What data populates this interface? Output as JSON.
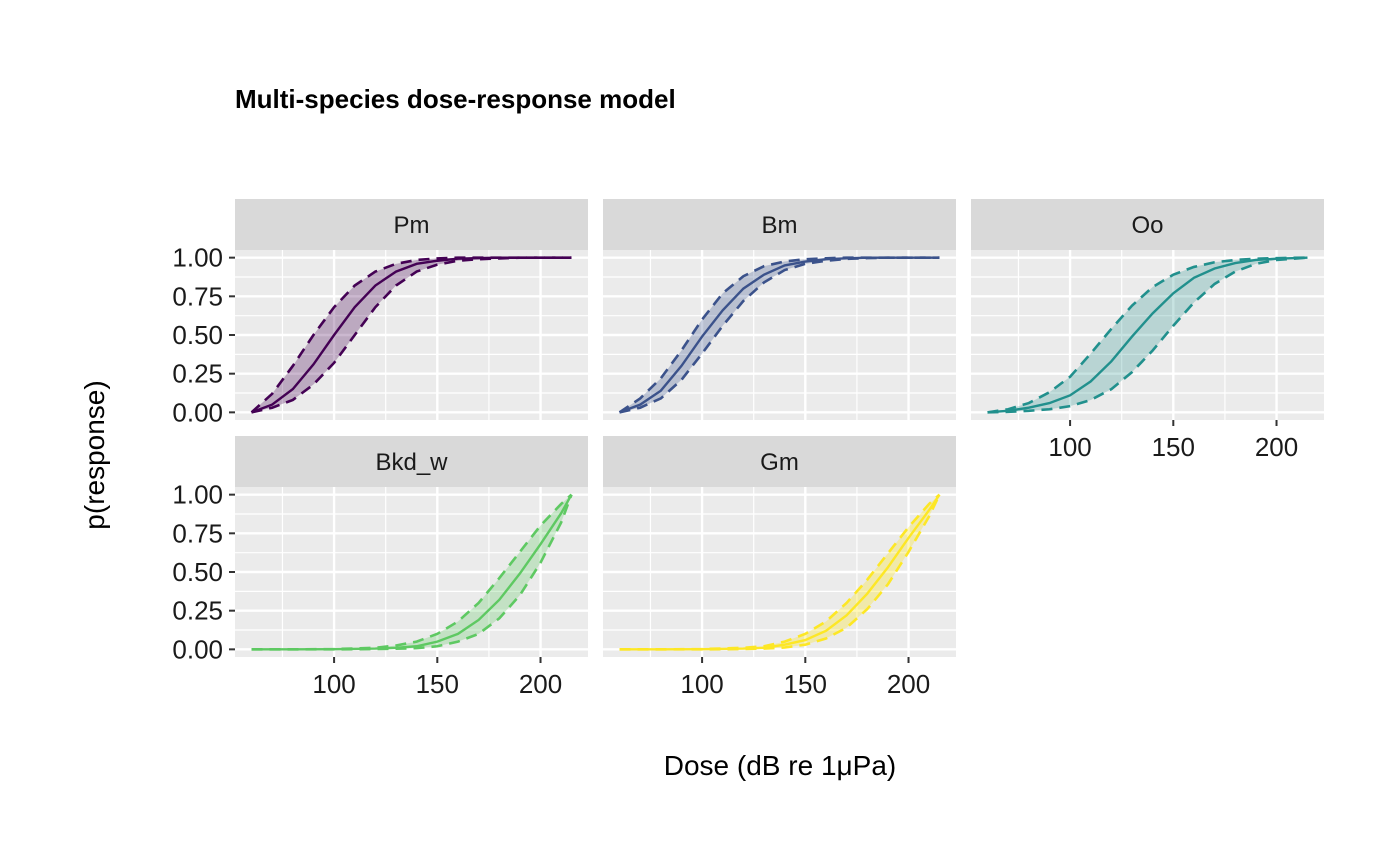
{
  "chart_data": {
    "type": "area",
    "title": "Multi-species dose-response model",
    "xlabel": "Dose (dB re 1μPa)",
    "ylabel": "p(response)",
    "xlim": [
      52,
      223
    ],
    "ylim": [
      0,
      1
    ],
    "x_ticks": [
      100,
      150,
      200
    ],
    "x_tick_labels": [
      "100",
      "150",
      "200"
    ],
    "y_ticks": [
      0,
      0.25,
      0.5,
      0.75,
      1
    ],
    "y_tick_labels": [
      "0.00",
      "0.25",
      "0.50",
      "0.75",
      "1.00"
    ],
    "x_range": [
      60,
      215
    ],
    "grid": true,
    "legend": "none",
    "facets": [
      {
        "name": "Pm",
        "color": "#440154",
        "fill": "#440154",
        "fill_opacity": 0.28,
        "curve": [
          [
            60,
            0
          ],
          [
            70,
            0.05
          ],
          [
            80,
            0.15
          ],
          [
            90,
            0.31
          ],
          [
            100,
            0.5
          ],
          [
            110,
            0.68
          ],
          [
            120,
            0.82
          ],
          [
            130,
            0.91
          ],
          [
            140,
            0.96
          ],
          [
            150,
            0.98
          ],
          [
            160,
            0.993
          ],
          [
            170,
            0.997
          ],
          [
            180,
            1
          ],
          [
            190,
            1
          ],
          [
            200,
            1
          ],
          [
            215,
            1
          ]
        ],
        "upper": [
          [
            60,
            0
          ],
          [
            70,
            0.12
          ],
          [
            80,
            0.3
          ],
          [
            90,
            0.5
          ],
          [
            100,
            0.68
          ],
          [
            110,
            0.82
          ],
          [
            120,
            0.91
          ],
          [
            130,
            0.96
          ],
          [
            140,
            0.985
          ],
          [
            150,
            0.995
          ],
          [
            160,
            1
          ],
          [
            170,
            1
          ],
          [
            180,
            1
          ],
          [
            190,
            1
          ],
          [
            200,
            1
          ],
          [
            215,
            1
          ]
        ],
        "lower": [
          [
            60,
            0
          ],
          [
            70,
            0.03
          ],
          [
            80,
            0.08
          ],
          [
            90,
            0.18
          ],
          [
            100,
            0.32
          ],
          [
            110,
            0.5
          ],
          [
            120,
            0.68
          ],
          [
            130,
            0.82
          ],
          [
            140,
            0.91
          ],
          [
            150,
            0.955
          ],
          [
            160,
            0.98
          ],
          [
            170,
            0.99
          ],
          [
            180,
            0.995
          ],
          [
            190,
            1
          ],
          [
            200,
            1
          ],
          [
            215,
            1
          ]
        ]
      },
      {
        "name": "Bm",
        "color": "#3b528b",
        "fill": "#3b528b",
        "fill_opacity": 0.28,
        "curve": [
          [
            60,
            0
          ],
          [
            70,
            0.05
          ],
          [
            80,
            0.14
          ],
          [
            90,
            0.3
          ],
          [
            100,
            0.49
          ],
          [
            110,
            0.66
          ],
          [
            120,
            0.8
          ],
          [
            130,
            0.89
          ],
          [
            140,
            0.95
          ],
          [
            150,
            0.975
          ],
          [
            160,
            0.99
          ],
          [
            170,
            0.996
          ],
          [
            180,
            1
          ],
          [
            190,
            1
          ],
          [
            200,
            1
          ],
          [
            215,
            1
          ]
        ],
        "upper": [
          [
            60,
            0
          ],
          [
            70,
            0.09
          ],
          [
            80,
            0.22
          ],
          [
            90,
            0.4
          ],
          [
            100,
            0.6
          ],
          [
            110,
            0.77
          ],
          [
            120,
            0.88
          ],
          [
            130,
            0.945
          ],
          [
            140,
            0.975
          ],
          [
            150,
            0.99
          ],
          [
            160,
            0.996
          ],
          [
            170,
            1
          ],
          [
            180,
            1
          ],
          [
            190,
            1
          ],
          [
            200,
            1
          ],
          [
            215,
            1
          ]
        ],
        "lower": [
          [
            60,
            0
          ],
          [
            70,
            0.03
          ],
          [
            80,
            0.09
          ],
          [
            90,
            0.21
          ],
          [
            100,
            0.38
          ],
          [
            110,
            0.56
          ],
          [
            120,
            0.72
          ],
          [
            130,
            0.84
          ],
          [
            140,
            0.92
          ],
          [
            150,
            0.96
          ],
          [
            160,
            0.98
          ],
          [
            170,
            0.992
          ],
          [
            180,
            0.997
          ],
          [
            190,
            1
          ],
          [
            200,
            1
          ],
          [
            215,
            1
          ]
        ]
      },
      {
        "name": "Oo",
        "color": "#21908d",
        "fill": "#21908d",
        "fill_opacity": 0.25,
        "curve": [
          [
            60,
            0
          ],
          [
            70,
            0.01
          ],
          [
            80,
            0.03
          ],
          [
            90,
            0.06
          ],
          [
            100,
            0.11
          ],
          [
            110,
            0.2
          ],
          [
            120,
            0.33
          ],
          [
            130,
            0.49
          ],
          [
            140,
            0.64
          ],
          [
            150,
            0.77
          ],
          [
            160,
            0.87
          ],
          [
            170,
            0.93
          ],
          [
            180,
            0.965
          ],
          [
            190,
            0.985
          ],
          [
            200,
            0.993
          ],
          [
            215,
            1
          ]
        ],
        "upper": [
          [
            60,
            0
          ],
          [
            70,
            0.02
          ],
          [
            80,
            0.06
          ],
          [
            90,
            0.13
          ],
          [
            100,
            0.23
          ],
          [
            110,
            0.38
          ],
          [
            120,
            0.54
          ],
          [
            130,
            0.69
          ],
          [
            140,
            0.81
          ],
          [
            150,
            0.89
          ],
          [
            160,
            0.94
          ],
          [
            170,
            0.97
          ],
          [
            180,
            0.985
          ],
          [
            190,
            0.993
          ],
          [
            200,
            0.997
          ],
          [
            215,
            1
          ]
        ],
        "lower": [
          [
            60,
            0
          ],
          [
            70,
            0.003
          ],
          [
            80,
            0.01
          ],
          [
            90,
            0.02
          ],
          [
            100,
            0.04
          ],
          [
            110,
            0.08
          ],
          [
            120,
            0.15
          ],
          [
            130,
            0.26
          ],
          [
            140,
            0.4
          ],
          [
            150,
            0.56
          ],
          [
            160,
            0.71
          ],
          [
            170,
            0.83
          ],
          [
            180,
            0.91
          ],
          [
            190,
            0.96
          ],
          [
            200,
            0.985
          ],
          [
            215,
            1
          ]
        ]
      },
      {
        "name": "Bkd_w",
        "color": "#5ec962",
        "fill": "#5ec962",
        "fill_opacity": 0.28,
        "curve": [
          [
            60,
            0
          ],
          [
            80,
            0
          ],
          [
            100,
            0.001
          ],
          [
            120,
            0.005
          ],
          [
            130,
            0.01
          ],
          [
            140,
            0.02
          ],
          [
            150,
            0.05
          ],
          [
            160,
            0.1
          ],
          [
            170,
            0.19
          ],
          [
            180,
            0.32
          ],
          [
            190,
            0.49
          ],
          [
            200,
            0.68
          ],
          [
            210,
            0.88
          ],
          [
            215,
            1
          ]
        ],
        "upper": [
          [
            60,
            0
          ],
          [
            80,
            0
          ],
          [
            100,
            0.002
          ],
          [
            120,
            0.01
          ],
          [
            130,
            0.025
          ],
          [
            140,
            0.05
          ],
          [
            150,
            0.1
          ],
          [
            160,
            0.18
          ],
          [
            170,
            0.3
          ],
          [
            180,
            0.46
          ],
          [
            190,
            0.63
          ],
          [
            200,
            0.8
          ],
          [
            210,
            0.94
          ],
          [
            215,
            1
          ]
        ],
        "lower": [
          [
            60,
            0
          ],
          [
            80,
            0
          ],
          [
            100,
            0
          ],
          [
            120,
            0.002
          ],
          [
            130,
            0.004
          ],
          [
            140,
            0.008
          ],
          [
            150,
            0.02
          ],
          [
            160,
            0.05
          ],
          [
            170,
            0.1
          ],
          [
            180,
            0.2
          ],
          [
            190,
            0.35
          ],
          [
            200,
            0.56
          ],
          [
            210,
            0.82
          ],
          [
            215,
            1
          ]
        ]
      },
      {
        "name": "Gm",
        "color": "#fde725",
        "fill": "#fde725",
        "fill_opacity": 0.32,
        "curve": [
          [
            60,
            0
          ],
          [
            80,
            0
          ],
          [
            100,
            0.001
          ],
          [
            120,
            0.005
          ],
          [
            130,
            0.01
          ],
          [
            140,
            0.03
          ],
          [
            150,
            0.06
          ],
          [
            160,
            0.12
          ],
          [
            170,
            0.22
          ],
          [
            180,
            0.36
          ],
          [
            190,
            0.53
          ],
          [
            200,
            0.72
          ],
          [
            210,
            0.9
          ],
          [
            215,
            1
          ]
        ],
        "upper": [
          [
            60,
            0
          ],
          [
            80,
            0
          ],
          [
            100,
            0.002
          ],
          [
            120,
            0.01
          ],
          [
            130,
            0.02
          ],
          [
            140,
            0.05
          ],
          [
            150,
            0.1
          ],
          [
            160,
            0.18
          ],
          [
            170,
            0.3
          ],
          [
            180,
            0.45
          ],
          [
            190,
            0.62
          ],
          [
            200,
            0.79
          ],
          [
            210,
            0.94
          ],
          [
            215,
            1
          ]
        ],
        "lower": [
          [
            60,
            0
          ],
          [
            80,
            0
          ],
          [
            100,
            0
          ],
          [
            120,
            0.002
          ],
          [
            130,
            0.005
          ],
          [
            140,
            0.012
          ],
          [
            150,
            0.03
          ],
          [
            160,
            0.07
          ],
          [
            170,
            0.14
          ],
          [
            180,
            0.26
          ],
          [
            190,
            0.42
          ],
          [
            200,
            0.63
          ],
          [
            210,
            0.86
          ],
          [
            215,
            1
          ]
        ]
      }
    ]
  }
}
